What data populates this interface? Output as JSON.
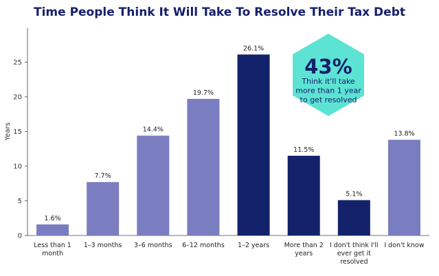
{
  "chart_data": {
    "type": "bar",
    "title": "Time People Think It Will Take To Resolve Their Tax Debt",
    "ylabel": "Years",
    "ylim": [
      0,
      30
    ],
    "yticks": [
      0,
      5,
      10,
      15,
      20,
      25
    ],
    "categories": [
      [
        "Less than 1",
        "month"
      ],
      [
        "1–3 months"
      ],
      [
        "3–6 months"
      ],
      [
        "6–12 months"
      ],
      [
        "1–2 years"
      ],
      [
        "More than 2",
        "years"
      ],
      [
        "I don't think I'll",
        "ever get it",
        "resolved"
      ],
      [
        "I don't know"
      ]
    ],
    "values": [
      1.6,
      7.7,
      14.4,
      19.7,
      26.1,
      11.5,
      5.1,
      13.8
    ],
    "data_labels": [
      "1.6%",
      "7.7%",
      "14.4%",
      "19.7%",
      "26.1%",
      "11.5%",
      "5.1%",
      "13.8%"
    ],
    "bar_colors": [
      "#7b7dc1",
      "#7b7dc1",
      "#7b7dc1",
      "#7b7dc1",
      "#13226a",
      "#13226a",
      "#13226a",
      "#7b7dc1"
    ],
    "grid": false,
    "callout": {
      "value": "43%",
      "lines": [
        "Think it'll take",
        "more than 1 year",
        "to get resolved"
      ],
      "color": "#5de3d3"
    }
  }
}
